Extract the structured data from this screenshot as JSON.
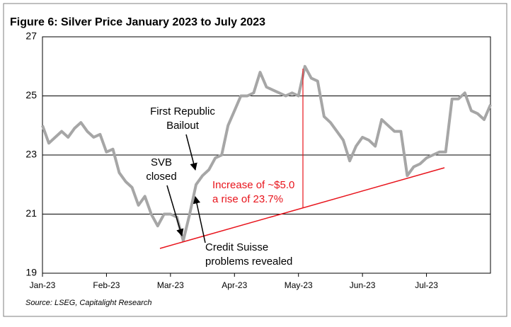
{
  "chart_data": {
    "type": "line",
    "title": "Figure 6: Silver Price January 2023 to July 2023",
    "source": "Source: LSEG, Capitalight Research",
    "categories": [
      "Jan-23",
      null,
      null,
      null,
      null,
      null,
      null,
      null,
      null,
      null,
      "Feb-23",
      null,
      null,
      null,
      null,
      null,
      null,
      null,
      null,
      null,
      "Mar-23",
      null,
      null,
      null,
      null,
      null,
      null,
      null,
      null,
      null,
      "Apr-23",
      null,
      null,
      null,
      null,
      null,
      null,
      null,
      null,
      null,
      "May-23",
      null,
      null,
      null,
      null,
      null,
      null,
      null,
      null,
      null,
      "Jun-23",
      null,
      null,
      null,
      null,
      null,
      null,
      null,
      null,
      null,
      "Jul-23",
      null,
      null,
      null,
      null,
      null,
      null,
      null,
      null,
      null,
      null
    ],
    "values": [
      24.0,
      23.4,
      23.6,
      23.8,
      23.6,
      23.9,
      24.1,
      23.8,
      23.6,
      23.7,
      23.1,
      23.2,
      22.4,
      22.1,
      21.9,
      21.3,
      21.6,
      21.0,
      20.6,
      21.0,
      21.0,
      20.9,
      20.1,
      21.0,
      22.0,
      22.3,
      22.5,
      22.9,
      23.0,
      24.0,
      24.5,
      25.0,
      25.0,
      25.1,
      25.8,
      25.3,
      25.2,
      25.1,
      25.0,
      25.1,
      25.0,
      26.0,
      25.6,
      25.5,
      24.3,
      24.1,
      23.8,
      23.5,
      22.8,
      23.3,
      23.6,
      23.5,
      23.3,
      24.2,
      24.0,
      23.8,
      23.8,
      22.3,
      22.6,
      22.7,
      22.9,
      23.0,
      23.1,
      23.1,
      24.9,
      24.9,
      25.1,
      24.5,
      24.4,
      24.2,
      24.7
    ],
    "color": "#a6a6a6",
    "ylim": [
      19,
      27
    ],
    "yticks": [
      19,
      21,
      23,
      25,
      27
    ],
    "grid": true,
    "annotations": [
      {
        "lines": [
          "First Republic",
          "Bailout"
        ],
        "color": "#000000"
      },
      {
        "lines": [
          "SVB",
          "closed"
        ],
        "color": "#000000"
      },
      {
        "lines": [
          "Increase of ~$5.0",
          "a rise of 23.7%"
        ],
        "color": "#e8141c"
      },
      {
        "lines": [
          "Credit Suisse",
          "problems revealed"
        ],
        "color": "#000000"
      }
    ]
  }
}
